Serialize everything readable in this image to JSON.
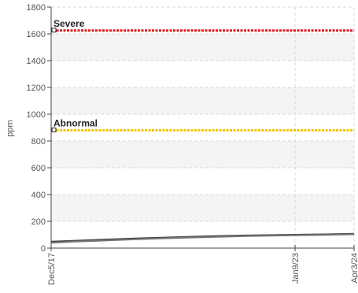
{
  "chart_data": {
    "type": "line",
    "ylabel": "ppm",
    "ylim": [
      0,
      1800
    ],
    "yticks": [
      0,
      200,
      400,
      600,
      800,
      1000,
      1200,
      1400,
      1600,
      1800
    ],
    "x_tick_labels": [
      "Dec5/17",
      "Jan9/23",
      "Apr3/24"
    ],
    "x": [
      "2017-12-05",
      "2023-01-09",
      "2024-04-03"
    ],
    "grid": true,
    "thresholds": [
      {
        "label": "Severe",
        "value": 1625,
        "color": "#e01b1b"
      },
      {
        "label": "Abnormal",
        "value": 880,
        "color": "#f2c400"
      }
    ],
    "series": [
      {
        "color": "#444444",
        "x": [
          "2017-12-05",
          "2018-06-01",
          "2019-01-01",
          "2019-09-01",
          "2020-06-01",
          "2021-03-01",
          "2022-01-01",
          "2023-01-09",
          "2023-09-01",
          "2024-04-03"
        ],
        "values": [
          48,
          55,
          63,
          72,
          80,
          88,
          95,
          100,
          103,
          107
        ]
      },
      {
        "color": "#777777",
        "x": [
          "2017-12-05",
          "2018-06-01",
          "2019-01-01",
          "2019-09-01",
          "2020-06-01",
          "2021-03-01",
          "2022-01-01",
          "2023-01-09",
          "2023-09-01",
          "2024-04-03"
        ],
        "values": [
          40,
          48,
          56,
          65,
          74,
          82,
          90,
          96,
          99,
          103
        ]
      }
    ]
  }
}
